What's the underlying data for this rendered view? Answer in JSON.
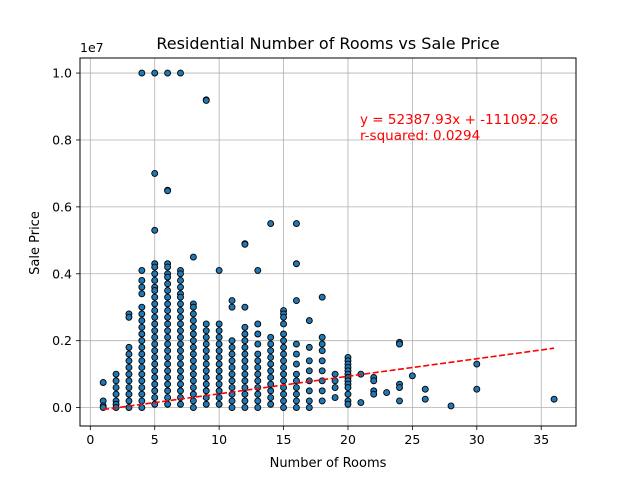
{
  "chart_data": {
    "type": "scatter",
    "title": "Residential Number of Rooms vs Sale Price",
    "xlabel": "Number of Rooms",
    "ylabel": "Sale Price",
    "offset_label": "1e7",
    "xlim": [
      -0.8,
      37.7
    ],
    "ylim": [
      -0.055,
      1.045
    ],
    "y_scale_factor": 10000000,
    "xticks": [
      0,
      5,
      10,
      15,
      20,
      25,
      30,
      35
    ],
    "yticks": [
      0.0,
      0.2,
      0.4,
      0.6,
      0.8,
      1.0
    ],
    "ytick_labels": [
      "0.0",
      "0.2",
      "0.4",
      "0.6",
      "0.8",
      "1.0"
    ],
    "grid": true,
    "series": [
      {
        "marker_color": "#1f77b4",
        "edge_color": "#000000",
        "note": "",
        "points": [
          [
            4,
            1.0
          ],
          [
            5,
            1.0
          ],
          [
            6,
            1.0
          ],
          [
            7,
            1.0
          ],
          [
            9,
            0.92
          ],
          [
            9,
            0.918
          ],
          [
            5,
            0.7
          ],
          [
            6,
            0.65
          ],
          [
            6,
            0.648
          ],
          [
            5,
            0.53
          ],
          [
            14,
            0.55
          ],
          [
            16,
            0.55
          ],
          [
            12,
            0.49
          ],
          [
            12,
            0.488
          ],
          [
            8,
            0.45
          ],
          [
            16,
            0.43
          ],
          [
            4,
            0.41
          ],
          [
            5,
            0.43
          ],
          [
            5,
            0.42
          ],
          [
            5,
            0.4
          ],
          [
            6,
            0.43
          ],
          [
            6,
            0.42
          ],
          [
            6,
            0.4
          ],
          [
            7,
            0.41
          ],
          [
            7,
            0.4
          ],
          [
            10,
            0.41
          ],
          [
            13,
            0.41
          ],
          [
            4,
            0.38
          ],
          [
            4,
            0.36
          ],
          [
            4,
            0.34
          ],
          [
            5,
            0.38
          ],
          [
            5,
            0.36
          ],
          [
            5,
            0.35
          ],
          [
            5,
            0.33
          ],
          [
            6,
            0.39
          ],
          [
            6,
            0.37
          ],
          [
            6,
            0.35
          ],
          [
            6,
            0.33
          ],
          [
            7,
            0.38
          ],
          [
            7,
            0.36
          ],
          [
            7,
            0.34
          ],
          [
            7,
            0.33
          ],
          [
            8,
            0.31
          ],
          [
            8,
            0.3
          ],
          [
            11,
            0.32
          ],
          [
            11,
            0.3
          ],
          [
            12,
            0.3
          ],
          [
            16,
            0.32
          ],
          [
            15,
            0.29
          ],
          [
            15,
            0.28
          ],
          [
            18,
            0.33
          ],
          [
            17,
            0.26
          ],
          [
            3,
            0.28
          ],
          [
            3,
            0.27
          ],
          [
            1,
            0.075
          ],
          [
            1,
            0.02
          ],
          [
            1,
            0.005
          ],
          [
            1,
            0.0
          ],
          [
            2,
            0.1
          ],
          [
            2,
            0.08
          ],
          [
            2,
            0.06
          ],
          [
            2,
            0.04
          ],
          [
            2,
            0.02
          ],
          [
            2,
            0.01
          ],
          [
            2,
            0.0
          ],
          [
            3,
            0.18
          ],
          [
            3,
            0.16
          ],
          [
            3,
            0.14
          ],
          [
            3,
            0.12
          ],
          [
            3,
            0.1
          ],
          [
            3,
            0.08
          ],
          [
            3,
            0.06
          ],
          [
            3,
            0.04
          ],
          [
            3,
            0.02
          ],
          [
            3,
            0.0
          ],
          [
            4,
            0.3
          ],
          [
            4,
            0.28
          ],
          [
            4,
            0.26
          ],
          [
            4,
            0.24
          ],
          [
            4,
            0.22
          ],
          [
            4,
            0.2
          ],
          [
            4,
            0.18
          ],
          [
            4,
            0.16
          ],
          [
            4,
            0.14
          ],
          [
            4,
            0.12
          ],
          [
            4,
            0.1
          ],
          [
            4,
            0.08
          ],
          [
            4,
            0.06
          ],
          [
            4,
            0.04
          ],
          [
            4,
            0.02
          ],
          [
            4,
            0.0
          ],
          [
            5,
            0.31
          ],
          [
            5,
            0.29
          ],
          [
            5,
            0.27
          ],
          [
            5,
            0.25
          ],
          [
            5,
            0.23
          ],
          [
            5,
            0.21
          ],
          [
            5,
            0.19
          ],
          [
            5,
            0.17
          ],
          [
            5,
            0.15
          ],
          [
            5,
            0.13
          ],
          [
            5,
            0.11
          ],
          [
            5,
            0.09
          ],
          [
            5,
            0.07
          ],
          [
            5,
            0.05
          ],
          [
            5,
            0.03
          ],
          [
            5,
            0.01
          ],
          [
            6,
            0.31
          ],
          [
            6,
            0.29
          ],
          [
            6,
            0.27
          ],
          [
            6,
            0.25
          ],
          [
            6,
            0.23
          ],
          [
            6,
            0.21
          ],
          [
            6,
            0.19
          ],
          [
            6,
            0.17
          ],
          [
            6,
            0.15
          ],
          [
            6,
            0.13
          ],
          [
            6,
            0.11
          ],
          [
            6,
            0.09
          ],
          [
            6,
            0.07
          ],
          [
            6,
            0.05
          ],
          [
            6,
            0.03
          ],
          [
            6,
            0.01
          ],
          [
            7,
            0.31
          ],
          [
            7,
            0.29
          ],
          [
            7,
            0.27
          ],
          [
            7,
            0.25
          ],
          [
            7,
            0.23
          ],
          [
            7,
            0.21
          ],
          [
            7,
            0.19
          ],
          [
            7,
            0.17
          ],
          [
            7,
            0.15
          ],
          [
            7,
            0.13
          ],
          [
            7,
            0.11
          ],
          [
            7,
            0.09
          ],
          [
            7,
            0.07
          ],
          [
            7,
            0.05
          ],
          [
            7,
            0.03
          ],
          [
            7,
            0.01
          ],
          [
            8,
            0.28
          ],
          [
            8,
            0.26
          ],
          [
            8,
            0.24
          ],
          [
            8,
            0.22
          ],
          [
            8,
            0.2
          ],
          [
            8,
            0.18
          ],
          [
            8,
            0.16
          ],
          [
            8,
            0.14
          ],
          [
            8,
            0.12
          ],
          [
            8,
            0.1
          ],
          [
            8,
            0.08
          ],
          [
            8,
            0.06
          ],
          [
            8,
            0.04
          ],
          [
            8,
            0.02
          ],
          [
            8,
            0.0
          ],
          [
            9,
            0.25
          ],
          [
            9,
            0.23
          ],
          [
            9,
            0.21
          ],
          [
            9,
            0.19
          ],
          [
            9,
            0.17
          ],
          [
            9,
            0.15
          ],
          [
            9,
            0.13
          ],
          [
            9,
            0.11
          ],
          [
            9,
            0.09
          ],
          [
            9,
            0.07
          ],
          [
            9,
            0.05
          ],
          [
            9,
            0.03
          ],
          [
            9,
            0.01
          ],
          [
            10,
            0.25
          ],
          [
            10,
            0.23
          ],
          [
            10,
            0.21
          ],
          [
            10,
            0.19
          ],
          [
            10,
            0.17
          ],
          [
            10,
            0.15
          ],
          [
            10,
            0.13
          ],
          [
            10,
            0.11
          ],
          [
            10,
            0.09
          ],
          [
            10,
            0.07
          ],
          [
            10,
            0.05
          ],
          [
            10,
            0.03
          ],
          [
            10,
            0.01
          ],
          [
            11,
            0.2
          ],
          [
            11,
            0.18
          ],
          [
            11,
            0.16
          ],
          [
            11,
            0.14
          ],
          [
            11,
            0.12
          ],
          [
            11,
            0.1
          ],
          [
            11,
            0.08
          ],
          [
            11,
            0.06
          ],
          [
            11,
            0.04
          ],
          [
            11,
            0.02
          ],
          [
            11,
            0.0
          ],
          [
            12,
            0.24
          ],
          [
            12,
            0.22
          ],
          [
            12,
            0.2
          ],
          [
            12,
            0.18
          ],
          [
            12,
            0.16
          ],
          [
            12,
            0.14
          ],
          [
            12,
            0.12
          ],
          [
            12,
            0.1
          ],
          [
            12,
            0.08
          ],
          [
            12,
            0.06
          ],
          [
            12,
            0.04
          ],
          [
            12,
            0.02
          ],
          [
            12,
            0.0
          ],
          [
            13,
            0.25
          ],
          [
            13,
            0.22
          ],
          [
            13,
            0.19
          ],
          [
            13,
            0.16
          ],
          [
            13,
            0.14
          ],
          [
            13,
            0.12
          ],
          [
            13,
            0.1
          ],
          [
            13,
            0.08
          ],
          [
            13,
            0.06
          ],
          [
            13,
            0.04
          ],
          [
            13,
            0.02
          ],
          [
            13,
            0.0
          ],
          [
            14,
            0.21
          ],
          [
            14,
            0.19
          ],
          [
            14,
            0.17
          ],
          [
            14,
            0.15
          ],
          [
            14,
            0.13
          ],
          [
            14,
            0.11
          ],
          [
            14,
            0.09
          ],
          [
            14,
            0.07
          ],
          [
            14,
            0.05
          ],
          [
            14,
            0.03
          ],
          [
            14,
            0.01
          ],
          [
            15,
            0.27
          ],
          [
            15,
            0.25
          ],
          [
            15,
            0.22
          ],
          [
            15,
            0.2
          ],
          [
            15,
            0.18
          ],
          [
            15,
            0.16
          ],
          [
            15,
            0.14
          ],
          [
            15,
            0.12
          ],
          [
            15,
            0.1
          ],
          [
            15,
            0.08
          ],
          [
            15,
            0.06
          ],
          [
            15,
            0.04
          ],
          [
            15,
            0.02
          ],
          [
            15,
            0.0
          ],
          [
            16,
            0.19
          ],
          [
            16,
            0.16
          ],
          [
            16,
            0.13
          ],
          [
            16,
            0.1
          ],
          [
            16,
            0.08
          ],
          [
            16,
            0.06
          ],
          [
            16,
            0.04
          ],
          [
            16,
            0.02
          ],
          [
            16,
            0.0
          ],
          [
            17,
            0.18
          ],
          [
            17,
            0.14
          ],
          [
            17,
            0.11
          ],
          [
            17,
            0.08
          ],
          [
            17,
            0.05
          ],
          [
            17,
            0.02
          ],
          [
            17,
            0.0
          ],
          [
            18,
            0.21
          ],
          [
            18,
            0.19
          ],
          [
            18,
            0.17
          ],
          [
            18,
            0.14
          ],
          [
            18,
            0.11
          ],
          [
            18,
            0.08
          ],
          [
            18,
            0.05
          ],
          [
            18,
            0.02
          ],
          [
            19,
            0.1
          ],
          [
            19,
            0.08
          ],
          [
            19,
            0.06
          ],
          [
            19,
            0.03
          ],
          [
            20,
            0.15
          ],
          [
            20,
            0.14
          ],
          [
            20,
            0.13
          ],
          [
            20,
            0.12
          ],
          [
            20,
            0.11
          ],
          [
            20,
            0.1
          ],
          [
            20,
            0.09
          ],
          [
            20,
            0.08
          ],
          [
            20,
            0.07
          ],
          [
            20,
            0.06
          ],
          [
            20,
            0.04
          ],
          [
            20,
            0.02
          ],
          [
            20,
            0.01
          ],
          [
            21,
            0.1
          ],
          [
            21,
            0.015
          ],
          [
            22,
            0.09
          ],
          [
            22,
            0.08
          ],
          [
            22,
            0.05
          ],
          [
            22,
            0.04
          ],
          [
            23,
            0.045
          ],
          [
            24,
            0.195
          ],
          [
            24,
            0.19
          ],
          [
            24,
            0.07
          ],
          [
            24,
            0.06
          ],
          [
            24,
            0.02
          ],
          [
            25,
            0.095
          ],
          [
            26,
            0.055
          ],
          [
            26,
            0.025
          ],
          [
            28,
            0.005
          ],
          [
            30,
            0.13
          ],
          [
            30,
            0.055
          ],
          [
            36,
            0.025
          ]
        ]
      }
    ],
    "regression_line": {
      "slope": 52387.93,
      "intercept": -111092.26,
      "x_range": [
        1,
        36
      ],
      "color": "#ff0000",
      "style": "dashed"
    },
    "annotation": {
      "line1": "y = 52387.93x + -111092.26",
      "line2": "r-squared: 0.0294",
      "color": "#ff0000"
    }
  }
}
